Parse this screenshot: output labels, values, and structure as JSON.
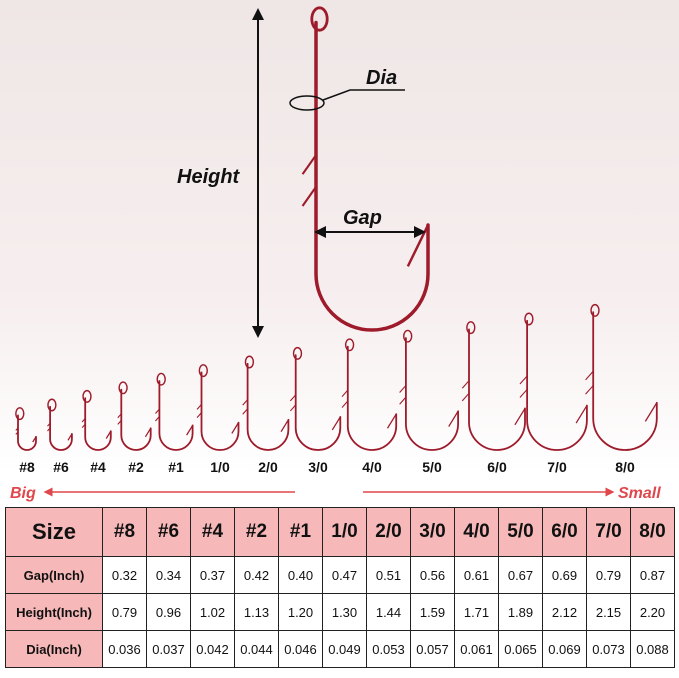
{
  "diagram": {
    "dia_label": "Dia",
    "height_label": "Height",
    "gap_label": "Gap",
    "big_label": "Big",
    "small_label": "Small"
  },
  "table": {
    "header": [
      "Size",
      "#8",
      "#6",
      "#4",
      "#2",
      "#1",
      "1/0",
      "2/0",
      "3/0",
      "4/0",
      "5/0",
      "6/0",
      "7/0",
      "8/0"
    ],
    "rows": [
      [
        "Gap(Inch)",
        "0.32",
        "0.34",
        "0.37",
        "0.42",
        "0.40",
        "0.47",
        "0.51",
        "0.56",
        "0.61",
        "0.67",
        "0.69",
        "0.79",
        "0.87"
      ],
      [
        "Height(Inch)",
        "0.79",
        "0.96",
        "1.02",
        "1.13",
        "1.20",
        "1.30",
        "1.44",
        "1.59",
        "1.71",
        "1.89",
        "2.12",
        "2.15",
        "2.20"
      ],
      [
        "Dia(Inch)",
        "0.036",
        "0.037",
        "0.042",
        "0.044",
        "0.046",
        "0.049",
        "0.053",
        "0.057",
        "0.061",
        "0.065",
        "0.069",
        "0.073",
        "0.088"
      ]
    ]
  }
}
